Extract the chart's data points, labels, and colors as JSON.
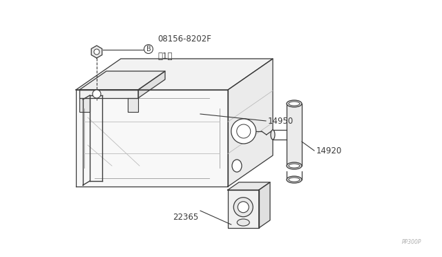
{
  "background_color": "#ffffff",
  "line_color": "#3a3a3a",
  "light_line_color": "#aaaaaa",
  "watermark": "PP300P",
  "labels": {
    "bolt": "08156-8202F\n（1）",
    "bolt_circle": "B",
    "part14950": "14950",
    "part14920": "14920",
    "part22365": "22365"
  }
}
